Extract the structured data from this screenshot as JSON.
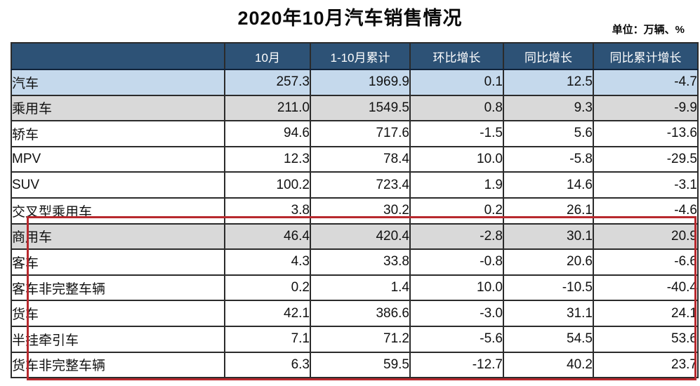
{
  "title": "2020年10月汽车销售情况",
  "unit_label": "单位：万辆、%",
  "colors": {
    "header_bg": "#2d5276",
    "row_blue": "#c5d9ec",
    "row_gray": "#d9d9d9",
    "grid_line": "#2b2b2b",
    "red_box": "#b8292e"
  },
  "chart_data": {
    "type": "table",
    "title": "2020年10月汽车销售情况",
    "unit": "单位：万辆、%",
    "columns": [
      "",
      "10月",
      "1-10月累计",
      "环比增长",
      "同比增长",
      "同比累计增长"
    ],
    "rows": [
      {
        "label": "汽车",
        "indent": 0,
        "highlight": "blue",
        "values": [
          "257.3",
          "1969.9",
          "0.1",
          "12.5",
          "-4.7"
        ]
      },
      {
        "label": "乘用车",
        "indent": 1,
        "highlight": "gray",
        "values": [
          "211.0",
          "1549.5",
          "0.8",
          "9.3",
          "-9.9"
        ]
      },
      {
        "label": "轿车",
        "indent": 2,
        "highlight": "none",
        "values": [
          "94.6",
          "717.6",
          "-1.5",
          "5.6",
          "-13.6"
        ]
      },
      {
        "label": "MPV",
        "indent": 2,
        "highlight": "none",
        "values": [
          "12.3",
          "78.4",
          "10.0",
          "-5.8",
          "-29.5"
        ]
      },
      {
        "label": "SUV",
        "indent": 2,
        "highlight": "none",
        "values": [
          "100.2",
          "723.4",
          "1.9",
          "14.6",
          "-3.1"
        ]
      },
      {
        "label": "交叉型乘用车",
        "indent": 2,
        "highlight": "none",
        "values": [
          "3.8",
          "30.2",
          "0.2",
          "26.1",
          "-4.6"
        ]
      },
      {
        "label": "商用车",
        "indent": 1,
        "highlight": "gray",
        "values": [
          "46.4",
          "420.4",
          "-2.8",
          "30.1",
          "20.9"
        ]
      },
      {
        "label": "客车",
        "indent": 2,
        "highlight": "none",
        "values": [
          "4.3",
          "33.8",
          "-0.8",
          "20.6",
          "-6.6"
        ]
      },
      {
        "label": "客车非完整车辆",
        "indent": 3,
        "highlight": "none",
        "values": [
          "0.2",
          "1.4",
          "10.0",
          "-10.5",
          "-40.4"
        ]
      },
      {
        "label": "货车",
        "indent": 2,
        "highlight": "none",
        "values": [
          "42.1",
          "386.6",
          "-3.0",
          "31.1",
          "24.1"
        ]
      },
      {
        "label": "半挂牵引车",
        "indent": 3,
        "highlight": "none",
        "values": [
          "7.1",
          "71.2",
          "-5.6",
          "54.5",
          "53.6"
        ]
      },
      {
        "label": "货车非完整车辆",
        "indent": 3,
        "highlight": "none",
        "values": [
          "6.3",
          "59.5",
          "-12.7",
          "40.2",
          "23.7"
        ]
      }
    ],
    "annotation": {
      "red_box_rows": [
        "商用车",
        "客车",
        "客车非完整车辆",
        "货车",
        "半挂牵引车",
        "货车非完整车辆"
      ],
      "red_box_color": "#b8292e"
    },
    "layout": {
      "grid": true,
      "header_style": "dark-blue-white-text",
      "number_alignment": "right"
    }
  }
}
